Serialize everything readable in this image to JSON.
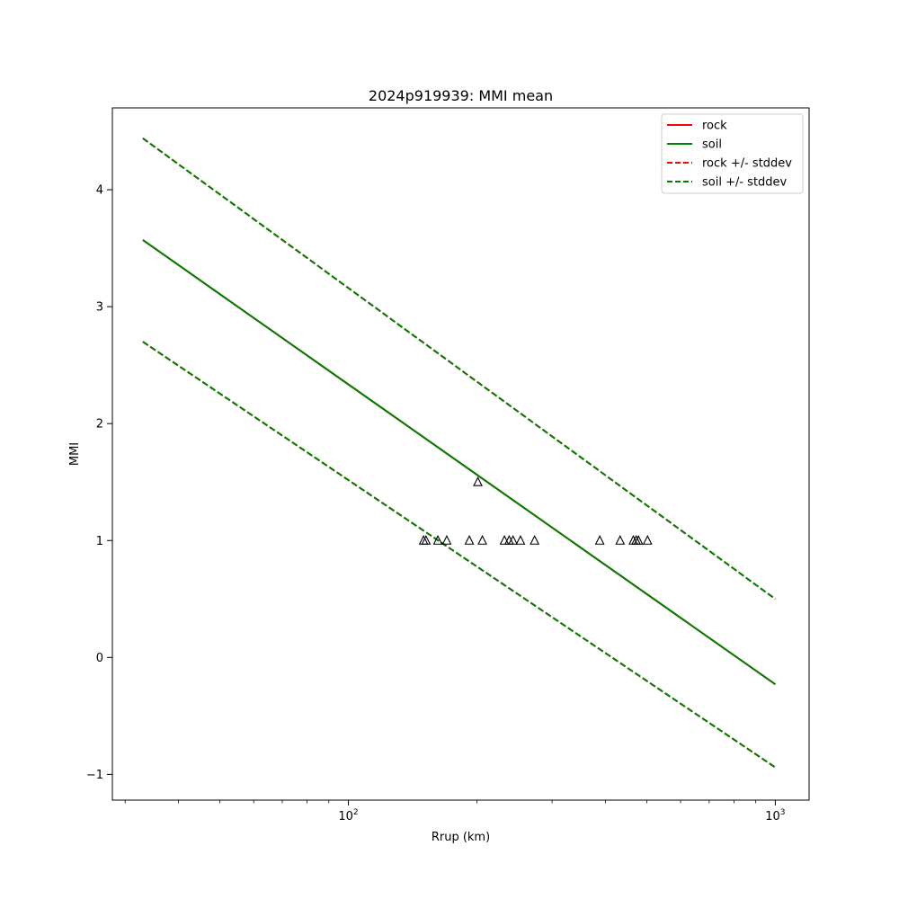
{
  "chart_data": {
    "type": "line",
    "title": "2024p919939: MMI mean",
    "xlabel": "Rrup (km)",
    "ylabel": "MMI",
    "xscale": "log",
    "xlim": [
      28,
      1200
    ],
    "ylim": [
      -1.22,
      4.7
    ],
    "grid": false,
    "legend_position": "top-right",
    "x_ticks": [
      {
        "value": 100,
        "base": "10",
        "exp": "2"
      },
      {
        "value": 1000,
        "base": "10",
        "exp": "3"
      }
    ],
    "y_ticks": [
      {
        "value": -1,
        "label": "−1"
      },
      {
        "value": 0,
        "label": "0"
      },
      {
        "value": 1,
        "label": "1"
      },
      {
        "value": 2,
        "label": "2"
      },
      {
        "value": 3,
        "label": "3"
      },
      {
        "value": 4,
        "label": "4"
      }
    ],
    "series": [
      {
        "name": "rock",
        "color": "#ff0000",
        "style": "solid",
        "x": [
          33,
          1000
        ],
        "y": [
          3.57,
          -0.23
        ]
      },
      {
        "name": "soil",
        "color": "#008000",
        "style": "solid",
        "x": [
          33,
          1000
        ],
        "y": [
          3.57,
          -0.23
        ]
      },
      {
        "name": "rock +/- stddev",
        "color": "#ff0000",
        "style": "dashed",
        "x": [
          33,
          1000
        ],
        "y": [
          4.44,
          0.5
        ],
        "x2": [
          33,
          1000
        ],
        "y2": [
          2.7,
          -0.94
        ]
      },
      {
        "name": "soil +/- stddev",
        "color": "#008000",
        "style": "dashed",
        "x": [
          33,
          1000
        ],
        "y": [
          4.44,
          0.5
        ],
        "x2": [
          33,
          1000
        ],
        "y2": [
          2.7,
          -0.94
        ]
      }
    ],
    "observations": {
      "marker": "triangle",
      "color": "#000000",
      "points": [
        {
          "x": 150,
          "y": 1.0
        },
        {
          "x": 152,
          "y": 1.0
        },
        {
          "x": 162,
          "y": 1.0
        },
        {
          "x": 170,
          "y": 1.0
        },
        {
          "x": 192,
          "y": 1.0
        },
        {
          "x": 201,
          "y": 1.5
        },
        {
          "x": 206,
          "y": 1.0
        },
        {
          "x": 232,
          "y": 1.0
        },
        {
          "x": 238,
          "y": 1.0
        },
        {
          "x": 243,
          "y": 1.0
        },
        {
          "x": 253,
          "y": 1.0
        },
        {
          "x": 273,
          "y": 1.0
        },
        {
          "x": 388,
          "y": 1.0
        },
        {
          "x": 433,
          "y": 1.0
        },
        {
          "x": 465,
          "y": 1.0
        },
        {
          "x": 472,
          "y": 1.0
        },
        {
          "x": 478,
          "y": 1.0
        },
        {
          "x": 502,
          "y": 1.0
        }
      ]
    }
  }
}
